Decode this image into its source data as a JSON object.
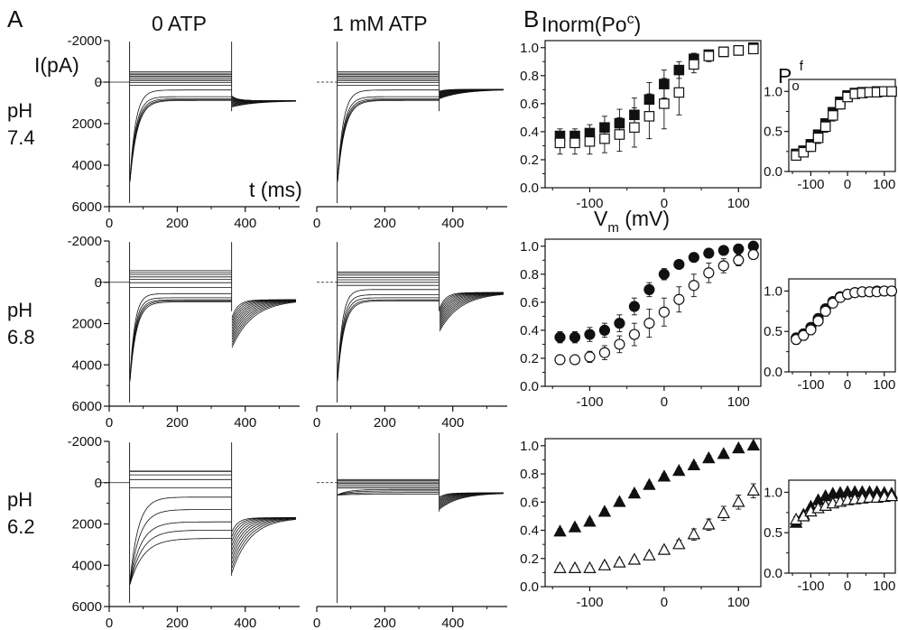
{
  "panels": {
    "A": "A",
    "B": "B"
  },
  "columns": {
    "left": "0 ATP",
    "right": "1 mM ATP"
  },
  "rows": [
    {
      "line1": "pH",
      "line2": "7.4"
    },
    {
      "line1": "pH",
      "line2": "6.8"
    },
    {
      "line1": "pH",
      "line2": "6.2"
    }
  ],
  "axis_labels": {
    "current": "I(pA)",
    "time": "t (ms)",
    "inorm": "Inorm(Po",
    "inorm_sup": "c",
    "inorm_close": ")",
    "vm": "V",
    "vm_sub": "m",
    "vm_unit": " (mV)",
    "pof": "P",
    "pof_sub": "o",
    "pof_sup": "f"
  },
  "colors": {
    "ink": "#111111",
    "background": "#ffffff"
  },
  "chart_data": [
    {
      "id": "traces",
      "type": "line",
      "x_unit": "ms",
      "y_unit": "pA",
      "xlim": [
        0,
        560
      ],
      "ylim": [
        -2000,
        6000
      ],
      "y_inverted": true,
      "xticks": [
        "0",
        "200",
        "400"
      ],
      "yticks": [
        "-2000",
        "0",
        "2000",
        "4000",
        "6000"
      ],
      "pulse": {
        "on_ms": 60,
        "off_ms": 360
      },
      "sweeps": {
        "A_74_0ATP": {
          "steady": [
            -500,
            -430,
            -360,
            -290,
            -220,
            -140,
            -60,
            20,
            150,
            380,
            700,
            800,
            850,
            880
          ],
          "peak": 5000,
          "tail": 900,
          "tail_start": 1200
        },
        "A_74_1ATP": {
          "steady": [
            -500,
            -430,
            -360,
            -290,
            -220,
            -140,
            -60,
            20,
            150,
            380,
            700,
            800,
            850,
            880
          ],
          "peak": 5000,
          "tail": 350,
          "tail_start": 800
        },
        "A_68_0ATP": {
          "steady": [
            -560,
            -470,
            -380,
            -260,
            -140,
            20,
            250,
            550,
            750,
            850,
            900,
            950
          ],
          "peak": 5000,
          "tail": 850,
          "tail_start": 3200
        },
        "A_68_1ATP": {
          "steady": [
            -500,
            -420,
            -340,
            -230,
            -120,
            0,
            150,
            350,
            600,
            750,
            850,
            900
          ],
          "peak": 5000,
          "tail": 500,
          "tail_start": 2400
        },
        "A_62_0ATP": {
          "steady": [
            -560,
            -540,
            -380,
            -150,
            250,
            700,
            1300,
            1900,
            2300,
            2700
          ],
          "peak": 5000,
          "tail": 1700,
          "tail_start": 4400
        },
        "A_62_1ATP": {
          "steady": [
            -150,
            -90,
            -30,
            30,
            100,
            180,
            260,
            330,
            400,
            480,
            560
          ],
          "peak": 600,
          "tail": 500,
          "tail_start": 1300
        }
      }
    },
    {
      "id": "inorm_pH74",
      "type": "scatter",
      "xlabel": "Vm (mV)",
      "ylabel": "Inorm(Poc)",
      "xlim": [
        -160,
        130
      ],
      "ylim": [
        0,
        1.05
      ],
      "xticks": [
        "-100",
        "0",
        "100"
      ],
      "yticks": [
        "0.0",
        "0.2",
        "0.4",
        "0.6",
        "0.8",
        "1.0"
      ],
      "x": [
        -140,
        -120,
        -100,
        -80,
        -60,
        -40,
        -20,
        0,
        20,
        40,
        60,
        80,
        100,
        120
      ],
      "series": [
        {
          "marker": "filled-square",
          "values": [
            0.37,
            0.37,
            0.39,
            0.43,
            0.46,
            0.52,
            0.63,
            0.74,
            0.84,
            0.92,
            0.95,
            0.97,
            0.98,
            1.0
          ],
          "err": [
            0.05,
            0.05,
            0.06,
            0.08,
            0.1,
            0.12,
            0.12,
            0.1,
            0.06,
            0.04,
            0.03,
            0.02,
            0.02,
            0.01
          ]
        },
        {
          "marker": "open-square",
          "values": [
            0.32,
            0.32,
            0.33,
            0.35,
            0.38,
            0.43,
            0.51,
            0.6,
            0.68,
            0.88,
            0.94,
            0.97,
            0.98,
            0.99
          ],
          "err": [
            0.08,
            0.08,
            0.09,
            0.1,
            0.12,
            0.14,
            0.16,
            0.18,
            0.16,
            0.06,
            0.04,
            0.03,
            0.03,
            0.02
          ]
        }
      ]
    },
    {
      "id": "inorm_pH68",
      "type": "scatter",
      "xlim": [
        -160,
        130
      ],
      "ylim": [
        0,
        1.05
      ],
      "xticks": [
        "-100",
        "0",
        "100"
      ],
      "yticks": [
        "0.0",
        "0.2",
        "0.4",
        "0.6",
        "0.8",
        "1.0"
      ],
      "x": [
        -140,
        -120,
        -100,
        -80,
        -60,
        -40,
        -20,
        0,
        20,
        40,
        60,
        80,
        100,
        120
      ],
      "series": [
        {
          "marker": "filled-circle",
          "values": [
            0.35,
            0.35,
            0.37,
            0.4,
            0.45,
            0.57,
            0.69,
            0.8,
            0.87,
            0.92,
            0.95,
            0.97,
            0.98,
            1.0
          ],
          "err": [
            0.04,
            0.04,
            0.05,
            0.05,
            0.06,
            0.06,
            0.05,
            0.04,
            0.03,
            0.02,
            0.02,
            0.01,
            0.01,
            0.01
          ]
        },
        {
          "marker": "open-circle",
          "values": [
            0.19,
            0.19,
            0.21,
            0.24,
            0.3,
            0.37,
            0.45,
            0.53,
            0.62,
            0.72,
            0.81,
            0.86,
            0.9,
            0.94
          ],
          "err": [
            0.03,
            0.03,
            0.04,
            0.05,
            0.06,
            0.08,
            0.1,
            0.1,
            0.09,
            0.08,
            0.07,
            0.05,
            0.04,
            0.03
          ]
        }
      ]
    },
    {
      "id": "inorm_pH62",
      "type": "scatter",
      "xlim": [
        -160,
        130
      ],
      "ylim": [
        0,
        1.05
      ],
      "xticks": [
        "-100",
        "0",
        "100"
      ],
      "yticks": [
        "0.0",
        "0.2",
        "0.4",
        "0.6",
        "0.8",
        "1.0"
      ],
      "x": [
        -140,
        -120,
        -100,
        -80,
        -60,
        -40,
        -20,
        0,
        20,
        40,
        60,
        80,
        100,
        120
      ],
      "series": [
        {
          "marker": "filled-triangle",
          "values": [
            0.39,
            0.42,
            0.46,
            0.53,
            0.6,
            0.66,
            0.72,
            0.78,
            0.82,
            0.86,
            0.91,
            0.94,
            0.98,
            1.0
          ],
          "err": [
            0.02,
            0.02,
            0.02,
            0.02,
            0.02,
            0.02,
            0.02,
            0.02,
            0.02,
            0.02,
            0.02,
            0.02,
            0.02,
            0.01
          ]
        },
        {
          "marker": "open-triangle",
          "values": [
            0.13,
            0.13,
            0.13,
            0.15,
            0.17,
            0.19,
            0.22,
            0.26,
            0.3,
            0.37,
            0.44,
            0.52,
            0.6,
            0.68
          ],
          "err": [
            0.02,
            0.02,
            0.02,
            0.02,
            0.02,
            0.02,
            0.02,
            0.02,
            0.03,
            0.04,
            0.04,
            0.05,
            0.05,
            0.05
          ]
        }
      ]
    },
    {
      "id": "pof_pH74",
      "type": "scatter",
      "ylabel": "Pof",
      "xlim": [
        -160,
        130
      ],
      "ylim": [
        0,
        1.15
      ],
      "xticks": [
        "-100",
        "0",
        "100"
      ],
      "yticks": [
        "0.0",
        "0.5",
        "1.0"
      ],
      "x": [
        -140,
        -120,
        -100,
        -80,
        -60,
        -40,
        -20,
        0,
        20,
        40,
        60,
        80,
        100,
        120
      ],
      "series": [
        {
          "marker": "filled-square",
          "values": [
            0.22,
            0.26,
            0.34,
            0.46,
            0.6,
            0.74,
            0.87,
            0.95,
            0.98,
            0.99,
            0.99,
            1.0,
            1.0,
            1.0
          ],
          "err": [
            0.04,
            0.04,
            0.05,
            0.05,
            0.05,
            0.05,
            0.04,
            0.03,
            0.02,
            0.02,
            0.02,
            0.02,
            0.02,
            0.02
          ]
        },
        {
          "marker": "open-square",
          "values": [
            0.2,
            0.24,
            0.31,
            0.42,
            0.56,
            0.7,
            0.84,
            0.93,
            0.97,
            0.98,
            0.99,
            0.99,
            1.0,
            1.0
          ],
          "err": [
            0.06,
            0.06,
            0.06,
            0.07,
            0.07,
            0.07,
            0.06,
            0.05,
            0.04,
            0.04,
            0.04,
            0.04,
            0.04,
            0.04
          ]
        }
      ]
    },
    {
      "id": "pof_pH68",
      "type": "scatter",
      "xlim": [
        -160,
        130
      ],
      "ylim": [
        0,
        1.15
      ],
      "xticks": [
        "-100",
        "0",
        "100"
      ],
      "yticks": [
        "0.0",
        "0.5",
        "1.0"
      ],
      "x": [
        -140,
        -120,
        -100,
        -80,
        -60,
        -40,
        -20,
        0,
        20,
        40,
        60,
        80,
        100,
        120
      ],
      "series": [
        {
          "marker": "filled-circle",
          "values": [
            0.42,
            0.47,
            0.55,
            0.66,
            0.78,
            0.87,
            0.93,
            0.96,
            0.98,
            0.99,
            0.99,
            1.0,
            1.0,
            1.0
          ],
          "err": [
            0.04,
            0.04,
            0.04,
            0.04,
            0.04,
            0.04,
            0.03,
            0.03,
            0.02,
            0.02,
            0.02,
            0.02,
            0.02,
            0.02
          ]
        },
        {
          "marker": "open-circle",
          "values": [
            0.4,
            0.45,
            0.52,
            0.63,
            0.75,
            0.85,
            0.92,
            0.96,
            0.98,
            0.99,
            0.99,
            0.99,
            1.0,
            1.0
          ],
          "err": [
            0.06,
            0.06,
            0.06,
            0.06,
            0.06,
            0.05,
            0.05,
            0.04,
            0.04,
            0.04,
            0.04,
            0.04,
            0.04,
            0.04
          ]
        }
      ]
    },
    {
      "id": "pof_pH62",
      "type": "scatter",
      "xlim": [
        -160,
        130
      ],
      "ylim": [
        0,
        1.15
      ],
      "xticks": [
        "-100",
        "0",
        "100"
      ],
      "yticks": [
        "0.0",
        "0.5",
        "1.0"
      ],
      "x": [
        -140,
        -120,
        -100,
        -80,
        -60,
        -40,
        -20,
        0,
        20,
        40,
        60,
        80,
        100,
        120
      ],
      "series": [
        {
          "marker": "filled-triangle",
          "values": [
            0.62,
            0.72,
            0.82,
            0.9,
            0.95,
            0.98,
            0.99,
            1.0,
            1.0,
            1.0,
            1.0,
            1.0,
            0.99,
            0.98
          ],
          "err": [
            0.03,
            0.03,
            0.03,
            0.03,
            0.02,
            0.02,
            0.02,
            0.02,
            0.02,
            0.02,
            0.02,
            0.02,
            0.02,
            0.02
          ]
        },
        {
          "marker": "open-triangle",
          "values": [
            0.66,
            0.7,
            0.76,
            0.8,
            0.83,
            0.86,
            0.88,
            0.9,
            0.91,
            0.92,
            0.93,
            0.93,
            0.94,
            0.95
          ],
          "err": [
            0.04,
            0.04,
            0.04,
            0.04,
            0.04,
            0.04,
            0.04,
            0.04,
            0.04,
            0.04,
            0.04,
            0.04,
            0.04,
            0.04
          ]
        }
      ]
    }
  ]
}
